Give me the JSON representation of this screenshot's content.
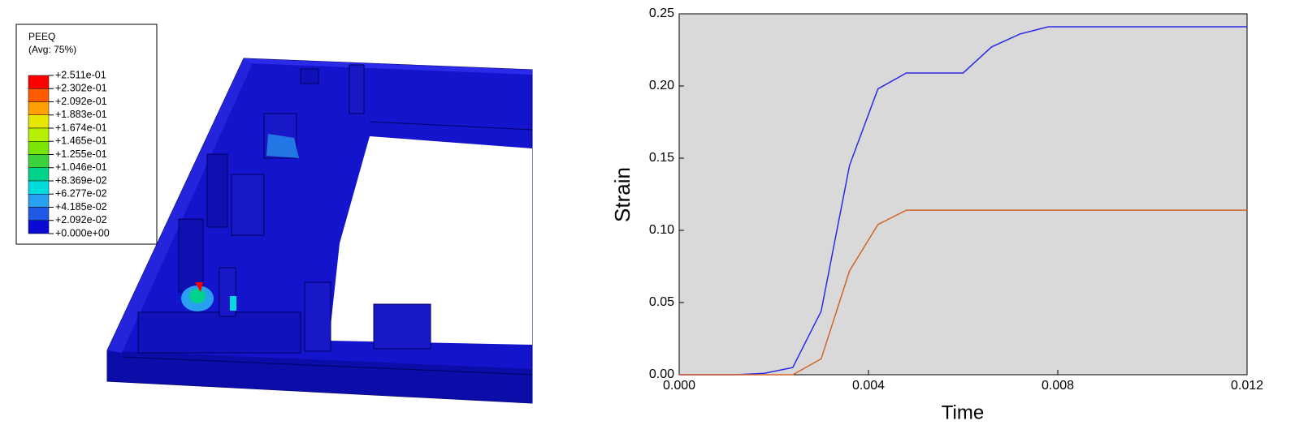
{
  "contour_legend": {
    "title": "PEEQ",
    "subtitle": "(Avg: 75%)",
    "labels": [
      "+2.511e-01",
      "+2.302e-01",
      "+2.092e-01",
      "+1.883e-01",
      "+1.674e-01",
      "+1.465e-01",
      "+1.255e-01",
      "+1.046e-01",
      "+8.369e-02",
      "+6.277e-02",
      "+4.185e-02",
      "+2.092e-02",
      "+0.000e+00"
    ],
    "colors": [
      "#ff0000",
      "#ff5a00",
      "#ffa000",
      "#e6e600",
      "#b4f000",
      "#78e600",
      "#3cd23c",
      "#00d28c",
      "#00dcdc",
      "#28a0f0",
      "#1e5ae6",
      "#0a0ad2"
    ]
  },
  "chart_data": {
    "type": "line",
    "ylabel": "Strain",
    "xlabel": "Time",
    "xlim": [
      0,
      0.012
    ],
    "ylim": [
      0,
      0.25
    ],
    "xticks": [
      {
        "value": 0,
        "label": "0.000"
      },
      {
        "value": 0.004,
        "label": "0.004"
      },
      {
        "value": 0.008,
        "label": "0.008"
      },
      {
        "value": 0.012,
        "label": "0.012"
      }
    ],
    "yticks": [
      {
        "value": 0,
        "label": "0.00"
      },
      {
        "value": 0.05,
        "label": "0.05"
      },
      {
        "value": 0.1,
        "label": "0.10"
      },
      {
        "value": 0.15,
        "label": "0.15"
      },
      {
        "value": 0.2,
        "label": "0.20"
      },
      {
        "value": 0.25,
        "label": "0.25"
      }
    ],
    "grid": false,
    "series": [
      {
        "color": "#2a2ae6",
        "x": [
          0,
          0.0012,
          0.0018,
          0.0024,
          0.003,
          0.0036,
          0.0042,
          0.0048,
          0.006,
          0.0066,
          0.0072,
          0.0078,
          0.012
        ],
        "values": [
          0,
          0,
          0.001,
          0.005,
          0.044,
          0.145,
          0.198,
          0.209,
          0.209,
          0.227,
          0.236,
          0.241,
          0.241
        ]
      },
      {
        "color": "#d2642a",
        "x": [
          0,
          0.0024,
          0.003,
          0.0036,
          0.0042,
          0.0048,
          0.012
        ],
        "values": [
          0,
          0,
          0.011,
          0.072,
          0.104,
          0.114,
          0.114
        ]
      }
    ]
  }
}
